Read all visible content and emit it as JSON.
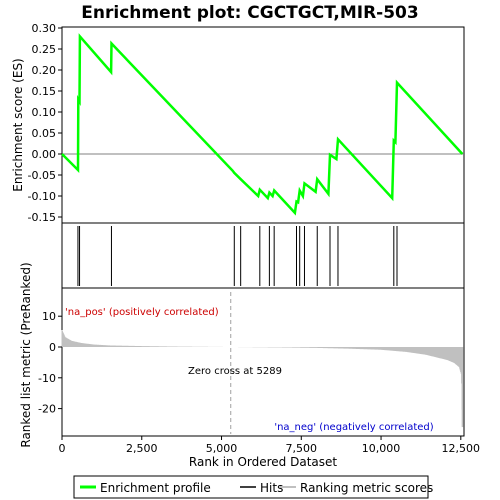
{
  "chart_data": {
    "type": "line",
    "title": "Enrichment plot: CGCTGCT,MIR-503",
    "colors": {
      "profile": "#00ff00",
      "hits": "#000000",
      "metric": "#c0c0c0",
      "pos_label": "#cc0000",
      "neg_label": "#0000cc"
    },
    "top_panel": {
      "ylabel": "Enrichment score (ES)",
      "ylim": [
        -0.16,
        0.3
      ],
      "yticks": [
        "0.30",
        "0.25",
        "0.20",
        "0.15",
        "0.10",
        "0.05",
        "0.00",
        "-0.05",
        "-0.10",
        "-0.15"
      ],
      "ytick_values": [
        0.3,
        0.25,
        0.2,
        0.15,
        0.1,
        0.05,
        0.0,
        -0.05,
        -0.1,
        -0.15
      ],
      "series": [
        {
          "name": "Enrichment profile",
          "x": [
            0,
            500,
            510,
            550,
            560,
            1540,
            1550,
            5350,
            5400,
            5600,
            6150,
            6200,
            6450,
            6500,
            6600,
            6650,
            7300,
            7350,
            7400,
            7450,
            7550,
            7600,
            7950,
            8000,
            8350,
            8400,
            8600,
            8650,
            10350,
            10400,
            10450,
            10500,
            12550
          ],
          "y": [
            0.0,
            -0.038,
            0.13,
            0.125,
            0.28,
            0.195,
            0.263,
            -0.04,
            -0.045,
            -0.06,
            -0.1,
            -0.085,
            -0.105,
            -0.092,
            -0.1,
            -0.087,
            -0.14,
            -0.113,
            -0.115,
            -0.087,
            -0.1,
            -0.07,
            -0.09,
            -0.06,
            -0.095,
            -0.002,
            -0.012,
            0.035,
            -0.105,
            0.032,
            0.028,
            0.17,
            0.0
          ]
        }
      ]
    },
    "hits": [
      500,
      550,
      1550,
      5400,
      5600,
      6200,
      6500,
      6650,
      7350,
      7450,
      7600,
      8000,
      8400,
      8650,
      10400,
      10500
    ],
    "rank_bar": {
      "colors": [
        "#ff0000",
        "#ff4040",
        "#ff7070",
        "#ff9a9a",
        "#ffc0ff",
        "#e6dcff",
        "#d6ccff",
        "#c8b8ff",
        "#8c8cff",
        "#5050ee",
        "#2020cc"
      ],
      "breaks": [
        0,
        1400,
        2150,
        3500,
        5289,
        7300,
        8300,
        9700,
        10300,
        12000,
        12550
      ]
    },
    "bottom_panel": {
      "xlabel": "Rank in Ordered Dataset",
      "ylabel": "Ranked list metric (PreRanked)",
      "ylim": [
        -28,
        14
      ],
      "yticks": [
        "10",
        "0",
        "-10",
        "-20"
      ],
      "ytick_values": [
        10,
        0,
        -10,
        -20
      ],
      "metric_x": [
        0,
        100,
        300,
        600,
        1000,
        1500,
        2500,
        3500,
        5289,
        7000,
        8000,
        9000,
        10000,
        10800,
        11400,
        11800,
        12100,
        12300,
        12450,
        12520,
        12550
      ],
      "metric_y": [
        5.5,
        3.2,
        2.0,
        1.3,
        0.8,
        0.5,
        0.3,
        0.15,
        0.0,
        -0.15,
        -0.3,
        -0.55,
        -0.9,
        -1.6,
        -2.5,
        -3.5,
        -4.3,
        -5.2,
        -6.5,
        -9.0,
        -26.0
      ],
      "zero_cross_x": 5289,
      "zero_cross_label": "Zero cross at 5289",
      "pos_label": "'na_pos' (positively correlated)",
      "neg_label": "'na_neg' (negatively correlated)"
    },
    "xlim": [
      0,
      12600
    ],
    "xticks": [
      "0",
      "2,500",
      "5,000",
      "7,500",
      "10,000",
      "12,500"
    ],
    "xtick_values": [
      0,
      2500,
      5000,
      7500,
      10000,
      12500
    ],
    "legend": {
      "placement": "bottom",
      "entries": [
        "Enrichment profile",
        "Hits",
        "Ranking metric scores"
      ]
    }
  }
}
